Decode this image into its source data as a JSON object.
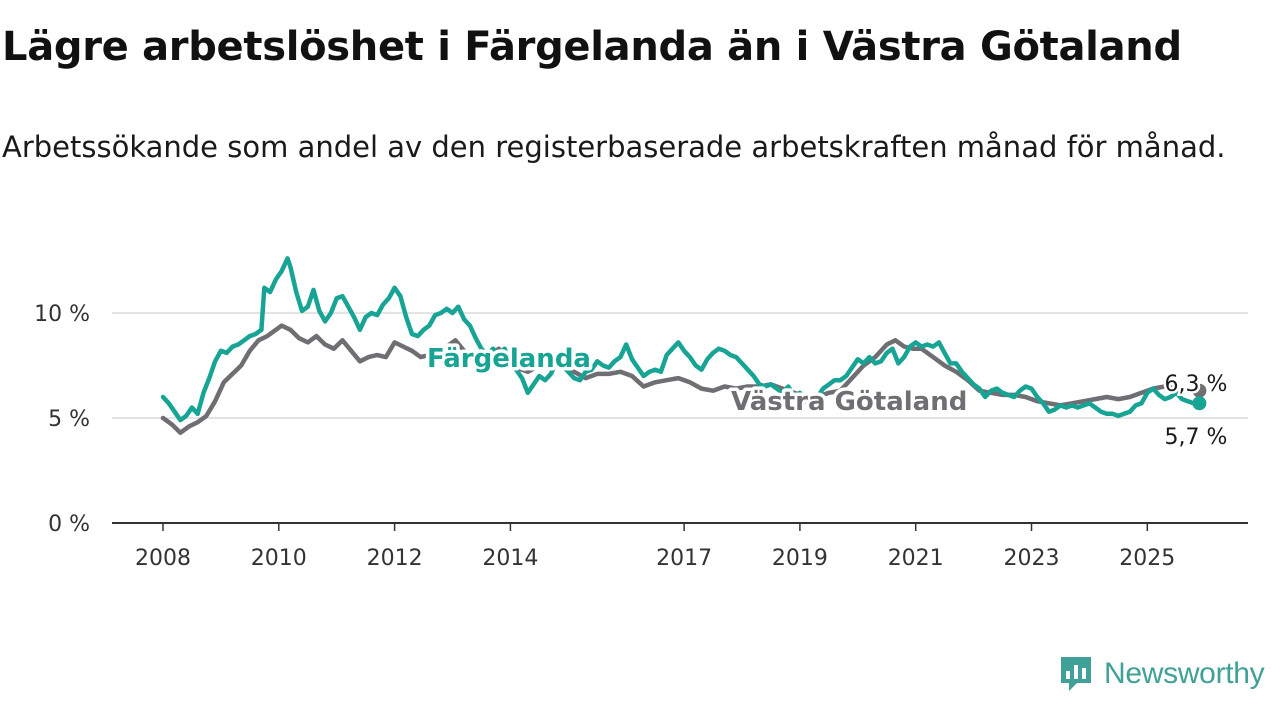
{
  "title": "Lägre arbetslöshet i Färgelanda än i Västra Götaland",
  "subtitle": "Arbetssökande som andel av den registerbaserade arbetskraften månad för månad.",
  "brand": {
    "name": "Newsworthy",
    "color": "#3fa197"
  },
  "chart_data": {
    "type": "line",
    "ylim": [
      0,
      13
    ],
    "xlim": [
      2007.9,
      2026.9
    ],
    "y_ticks": [
      {
        "value": 0,
        "label": "0 %"
      },
      {
        "value": 5,
        "label": "5 %"
      },
      {
        "value": 10,
        "label": "10 %"
      }
    ],
    "x_ticks": [
      {
        "value": 2008,
        "label": "2008"
      },
      {
        "value": 2010,
        "label": "2010"
      },
      {
        "value": 2012,
        "label": "2012"
      },
      {
        "value": 2014,
        "label": "2014"
      },
      {
        "value": 2017,
        "label": "2017"
      },
      {
        "value": 2019,
        "label": "2019"
      },
      {
        "value": 2021,
        "label": "2021"
      },
      {
        "value": 2023,
        "label": "2023"
      },
      {
        "value": 2025,
        "label": "2025"
      }
    ],
    "grid": true,
    "series": [
      {
        "name": "Västra Götaland",
        "color": "#6e6e73",
        "label": "Västra Götaland",
        "end_label": "6,3 %",
        "points": [
          [
            2008.0,
            5.0
          ],
          [
            2008.15,
            4.7
          ],
          [
            2008.3,
            4.3
          ],
          [
            2008.45,
            4.6
          ],
          [
            2008.6,
            4.8
          ],
          [
            2008.75,
            5.1
          ],
          [
            2008.9,
            5.8
          ],
          [
            2009.05,
            6.7
          ],
          [
            2009.2,
            7.1
          ],
          [
            2009.35,
            7.5
          ],
          [
            2009.5,
            8.2
          ],
          [
            2009.65,
            8.7
          ],
          [
            2009.8,
            8.9
          ],
          [
            2009.95,
            9.2
          ],
          [
            2010.05,
            9.4
          ],
          [
            2010.2,
            9.2
          ],
          [
            2010.35,
            8.8
          ],
          [
            2010.5,
            8.6
          ],
          [
            2010.65,
            8.9
          ],
          [
            2010.8,
            8.5
          ],
          [
            2010.95,
            8.3
          ],
          [
            2011.1,
            8.7
          ],
          [
            2011.25,
            8.2
          ],
          [
            2011.4,
            7.7
          ],
          [
            2011.55,
            7.9
          ],
          [
            2011.7,
            8.0
          ],
          [
            2011.85,
            7.9
          ],
          [
            2012.0,
            8.6
          ],
          [
            2012.15,
            8.4
          ],
          [
            2012.3,
            8.2
          ],
          [
            2012.45,
            7.9
          ],
          [
            2012.6,
            8.0
          ],
          [
            2012.75,
            8.2
          ],
          [
            2012.9,
            8.4
          ],
          [
            2013.05,
            8.7
          ],
          [
            2013.2,
            8.2
          ],
          [
            2013.35,
            7.9
          ],
          [
            2013.5,
            8.2
          ],
          [
            2013.65,
            8.0
          ],
          [
            2013.8,
            8.3
          ],
          [
            2013.95,
            7.8
          ],
          [
            2014.1,
            7.4
          ],
          [
            2014.3,
            7.2
          ],
          [
            2014.5,
            7.5
          ],
          [
            2014.7,
            7.4
          ],
          [
            2014.9,
            7.6
          ],
          [
            2015.1,
            7.2
          ],
          [
            2015.3,
            6.9
          ],
          [
            2015.5,
            7.1
          ],
          [
            2015.7,
            7.1
          ],
          [
            2015.9,
            7.2
          ],
          [
            2016.1,
            7.0
          ],
          [
            2016.3,
            6.5
          ],
          [
            2016.5,
            6.7
          ],
          [
            2016.7,
            6.8
          ],
          [
            2016.9,
            6.9
          ],
          [
            2017.1,
            6.7
          ],
          [
            2017.3,
            6.4
          ],
          [
            2017.5,
            6.3
          ],
          [
            2017.7,
            6.5
          ],
          [
            2017.9,
            6.4
          ],
          [
            2018.1,
            6.5
          ],
          [
            2018.3,
            6.5
          ],
          [
            2018.5,
            6.6
          ],
          [
            2018.7,
            6.4
          ],
          [
            2018.9,
            6.2
          ],
          [
            2019.1,
            6.0
          ],
          [
            2019.3,
            6.0
          ],
          [
            2019.5,
            6.2
          ],
          [
            2019.7,
            6.3
          ],
          [
            2019.9,
            6.9
          ],
          [
            2020.1,
            7.5
          ],
          [
            2020.3,
            7.9
          ],
          [
            2020.5,
            8.5
          ],
          [
            2020.65,
            8.7
          ],
          [
            2020.8,
            8.4
          ],
          [
            2020.95,
            8.3
          ],
          [
            2021.1,
            8.3
          ],
          [
            2021.3,
            7.9
          ],
          [
            2021.5,
            7.5
          ],
          [
            2021.7,
            7.2
          ],
          [
            2021.9,
            6.8
          ],
          [
            2022.1,
            6.3
          ],
          [
            2022.3,
            6.2
          ],
          [
            2022.5,
            6.1
          ],
          [
            2022.7,
            6.1
          ],
          [
            2022.9,
            6.0
          ],
          [
            2023.1,
            5.8
          ],
          [
            2023.3,
            5.7
          ],
          [
            2023.5,
            5.6
          ],
          [
            2023.7,
            5.7
          ],
          [
            2023.9,
            5.8
          ],
          [
            2024.1,
            5.9
          ],
          [
            2024.3,
            6.0
          ],
          [
            2024.5,
            5.9
          ],
          [
            2024.7,
            6.0
          ],
          [
            2024.9,
            6.2
          ],
          [
            2025.1,
            6.4
          ],
          [
            2025.3,
            6.5
          ],
          [
            2025.5,
            6.4
          ],
          [
            2025.7,
            6.3
          ],
          [
            2025.9,
            6.3
          ]
        ]
      },
      {
        "name": "Färgelanda",
        "color": "#17a495",
        "label": "Färgelanda",
        "end_label": "5,7 %",
        "points": [
          [
            2008.0,
            6.0
          ],
          [
            2008.1,
            5.7
          ],
          [
            2008.2,
            5.3
          ],
          [
            2008.3,
            4.9
          ],
          [
            2008.4,
            5.1
          ],
          [
            2008.5,
            5.5
          ],
          [
            2008.6,
            5.2
          ],
          [
            2008.7,
            6.2
          ],
          [
            2008.8,
            6.9
          ],
          [
            2008.9,
            7.7
          ],
          [
            2009.0,
            8.2
          ],
          [
            2009.1,
            8.1
          ],
          [
            2009.2,
            8.4
          ],
          [
            2009.3,
            8.5
          ],
          [
            2009.4,
            8.7
          ],
          [
            2009.5,
            8.9
          ],
          [
            2009.6,
            9.0
          ],
          [
            2009.7,
            9.2
          ],
          [
            2009.75,
            11.2
          ],
          [
            2009.85,
            11.0
          ],
          [
            2009.95,
            11.6
          ],
          [
            2010.05,
            12.0
          ],
          [
            2010.15,
            12.6
          ],
          [
            2010.2,
            12.2
          ],
          [
            2010.3,
            11.0
          ],
          [
            2010.4,
            10.1
          ],
          [
            2010.5,
            10.3
          ],
          [
            2010.6,
            11.1
          ],
          [
            2010.7,
            10.1
          ],
          [
            2010.8,
            9.6
          ],
          [
            2010.9,
            10.0
          ],
          [
            2011.0,
            10.7
          ],
          [
            2011.1,
            10.8
          ],
          [
            2011.2,
            10.3
          ],
          [
            2011.3,
            9.8
          ],
          [
            2011.4,
            9.2
          ],
          [
            2011.5,
            9.8
          ],
          [
            2011.6,
            10.0
          ],
          [
            2011.7,
            9.9
          ],
          [
            2011.8,
            10.4
          ],
          [
            2011.9,
            10.7
          ],
          [
            2012.0,
            11.2
          ],
          [
            2012.1,
            10.8
          ],
          [
            2012.2,
            9.8
          ],
          [
            2012.3,
            9.0
          ],
          [
            2012.4,
            8.9
          ],
          [
            2012.5,
            9.2
          ],
          [
            2012.6,
            9.4
          ],
          [
            2012.7,
            9.9
          ],
          [
            2012.8,
            10.0
          ],
          [
            2012.9,
            10.2
          ],
          [
            2013.0,
            10.0
          ],
          [
            2013.1,
            10.3
          ],
          [
            2013.2,
            9.7
          ],
          [
            2013.3,
            9.4
          ],
          [
            2013.4,
            8.8
          ],
          [
            2013.5,
            8.3
          ],
          [
            2013.6,
            8.0
          ],
          [
            2013.7,
            8.3
          ],
          [
            2013.8,
            8.0
          ],
          [
            2013.9,
            8.3
          ],
          [
            2014.0,
            7.6
          ],
          [
            2014.1,
            7.3
          ],
          [
            2014.2,
            6.9
          ],
          [
            2014.3,
            6.2
          ],
          [
            2014.4,
            6.6
          ],
          [
            2014.5,
            7.0
          ],
          [
            2014.6,
            6.8
          ],
          [
            2014.7,
            7.1
          ],
          [
            2014.8,
            7.7
          ],
          [
            2014.9,
            7.5
          ],
          [
            2015.0,
            7.2
          ],
          [
            2015.1,
            6.9
          ],
          [
            2015.2,
            6.8
          ],
          [
            2015.3,
            7.2
          ],
          [
            2015.4,
            7.3
          ],
          [
            2015.5,
            7.7
          ],
          [
            2015.6,
            7.5
          ],
          [
            2015.7,
            7.4
          ],
          [
            2015.8,
            7.7
          ],
          [
            2015.9,
            7.9
          ],
          [
            2016.0,
            8.5
          ],
          [
            2016.1,
            7.8
          ],
          [
            2016.2,
            7.4
          ],
          [
            2016.3,
            7.0
          ],
          [
            2016.4,
            7.2
          ],
          [
            2016.5,
            7.3
          ],
          [
            2016.6,
            7.2
          ],
          [
            2016.7,
            8.0
          ],
          [
            2016.8,
            8.3
          ],
          [
            2016.9,
            8.6
          ],
          [
            2017.0,
            8.2
          ],
          [
            2017.1,
            7.9
          ],
          [
            2017.2,
            7.5
          ],
          [
            2017.3,
            7.3
          ],
          [
            2017.4,
            7.8
          ],
          [
            2017.5,
            8.1
          ],
          [
            2017.6,
            8.3
          ],
          [
            2017.7,
            8.2
          ],
          [
            2017.8,
            8.0
          ],
          [
            2017.9,
            7.9
          ],
          [
            2018.0,
            7.6
          ],
          [
            2018.1,
            7.3
          ],
          [
            2018.2,
            7.0
          ],
          [
            2018.3,
            6.6
          ],
          [
            2018.4,
            6.5
          ],
          [
            2018.5,
            6.6
          ],
          [
            2018.6,
            6.4
          ],
          [
            2018.7,
            6.2
          ],
          [
            2018.8,
            6.5
          ],
          [
            2018.9,
            6.0
          ],
          [
            2019.0,
            6.2
          ],
          [
            2019.1,
            5.8
          ],
          [
            2019.2,
            5.6
          ],
          [
            2019.3,
            6.0
          ],
          [
            2019.4,
            6.4
          ],
          [
            2019.5,
            6.6
          ],
          [
            2019.6,
            6.8
          ],
          [
            2019.7,
            6.8
          ],
          [
            2019.8,
            7.0
          ],
          [
            2019.9,
            7.4
          ],
          [
            2020.0,
            7.8
          ],
          [
            2020.1,
            7.6
          ],
          [
            2020.2,
            7.9
          ],
          [
            2020.3,
            7.6
          ],
          [
            2020.4,
            7.7
          ],
          [
            2020.5,
            8.1
          ],
          [
            2020.6,
            8.3
          ],
          [
            2020.7,
            7.6
          ],
          [
            2020.8,
            7.9
          ],
          [
            2020.9,
            8.4
          ],
          [
            2021.0,
            8.6
          ],
          [
            2021.1,
            8.4
          ],
          [
            2021.2,
            8.5
          ],
          [
            2021.3,
            8.4
          ],
          [
            2021.4,
            8.6
          ],
          [
            2021.5,
            8.1
          ],
          [
            2021.6,
            7.6
          ],
          [
            2021.7,
            7.6
          ],
          [
            2021.8,
            7.2
          ],
          [
            2021.9,
            6.9
          ],
          [
            2022.0,
            6.6
          ],
          [
            2022.1,
            6.4
          ],
          [
            2022.2,
            6.0
          ],
          [
            2022.3,
            6.3
          ],
          [
            2022.4,
            6.4
          ],
          [
            2022.5,
            6.2
          ],
          [
            2022.6,
            6.1
          ],
          [
            2022.7,
            6.0
          ],
          [
            2022.8,
            6.3
          ],
          [
            2022.9,
            6.5
          ],
          [
            2023.0,
            6.4
          ],
          [
            2023.1,
            6.0
          ],
          [
            2023.2,
            5.7
          ],
          [
            2023.3,
            5.3
          ],
          [
            2023.4,
            5.4
          ],
          [
            2023.5,
            5.6
          ],
          [
            2023.6,
            5.5
          ],
          [
            2023.7,
            5.6
          ],
          [
            2023.8,
            5.5
          ],
          [
            2023.9,
            5.6
          ],
          [
            2024.0,
            5.7
          ],
          [
            2024.1,
            5.5
          ],
          [
            2024.2,
            5.3
          ],
          [
            2024.3,
            5.2
          ],
          [
            2024.4,
            5.2
          ],
          [
            2024.5,
            5.1
          ],
          [
            2024.6,
            5.2
          ],
          [
            2024.7,
            5.3
          ],
          [
            2024.8,
            5.6
          ],
          [
            2024.9,
            5.7
          ],
          [
            2025.0,
            6.2
          ],
          [
            2025.1,
            6.4
          ],
          [
            2025.2,
            6.1
          ],
          [
            2025.3,
            5.9
          ],
          [
            2025.4,
            6.0
          ],
          [
            2025.5,
            6.2
          ],
          [
            2025.6,
            5.9
          ],
          [
            2025.7,
            5.8
          ],
          [
            2025.8,
            5.7
          ],
          [
            2025.9,
            5.7
          ]
        ]
      }
    ]
  }
}
